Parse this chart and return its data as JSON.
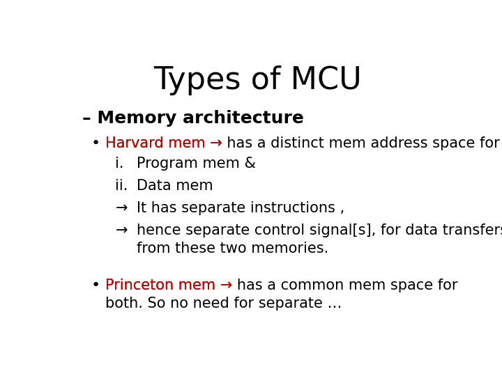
{
  "title": "Types of MCU",
  "title_fontsize": 32,
  "title_color": "#000000",
  "background_color": "#ffffff",
  "section_header": "– Memory architecture",
  "section_header_fontsize": 18,
  "section_header_color": "#000000",
  "bullet1_prefix": "Harvard mem →",
  "bullet1_suffix": " has a distinct mem address space for",
  "bullet1_prefix_color": "#cc0000",
  "bullet1_suffix_color": "#000000",
  "bullet1_fontsize": 15,
  "sub_items": [
    {
      "label": "i.",
      "text": "Program mem &"
    },
    {
      "label": "ii.",
      "text": "Data mem"
    },
    {
      "label": "→",
      "text": "It has separate instructions ,"
    },
    {
      "label": "→",
      "text": "hence separate control signal[s], for data transfers\nfrom these two memories."
    }
  ],
  "sub_fontsize": 15,
  "sub_color": "#000000",
  "bullet2_prefix": "Princeton mem →",
  "bullet2_suffix": " has a common mem space for\nboth. So no need for separate …",
  "bullet2_prefix_color": "#cc0000",
  "bullet2_suffix_color": "#000000",
  "bullet2_fontsize": 15,
  "bullet_dot_color": "#000000"
}
